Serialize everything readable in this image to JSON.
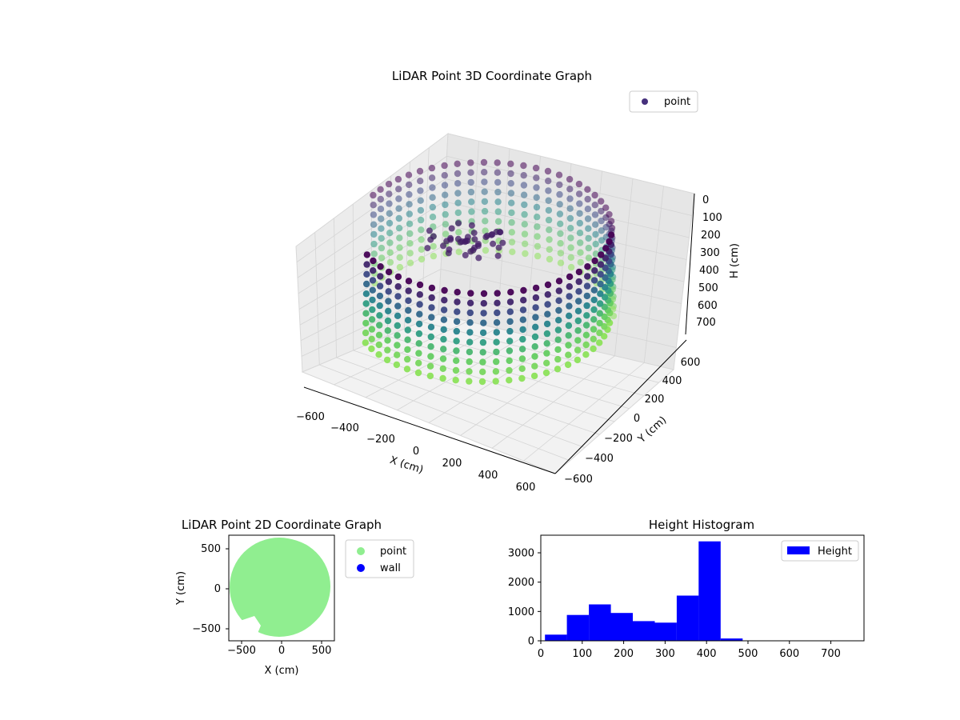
{
  "chart_data": [
    {
      "type": "scatter",
      "title": "LiDAR Point 3D Coordinate Graph",
      "xlabel": "X (cm)",
      "ylabel": "Y (cm)",
      "zlabel": "H (cm)",
      "xlim": [
        -700,
        700
      ],
      "ylim": [
        -700,
        700
      ],
      "zlim": [
        750,
        0
      ],
      "z_axis_inverted": true,
      "x_ticks": [
        "−600",
        "−400",
        "−200",
        "0",
        "200",
        "400",
        "600"
      ],
      "y_ticks": [
        "−600",
        "−400",
        "−200",
        "0",
        "200",
        "400",
        "600"
      ],
      "z_ticks": [
        "0",
        "100",
        "200",
        "300",
        "400",
        "500",
        "600",
        "700"
      ],
      "grid": true,
      "legend": {
        "position": "top-right",
        "entries": [
          {
            "label": "point",
            "color": "#46307c"
          }
        ]
      },
      "colormap": "viridis (by height)",
      "structure": "ring of points, radius about 600 cm, heights 0 to 750 cm, gap on the left"
    },
    {
      "type": "scatter",
      "title": "LiDAR Point 2D Coordinate Graph",
      "xlabel": "X (cm)",
      "ylabel": "Y (cm)",
      "xlim": [
        -700,
        700
      ],
      "ylim": [
        -700,
        700
      ],
      "x_ticks": [
        "−500",
        "0",
        "500"
      ],
      "y_ticks": [
        "−500",
        "0",
        "500"
      ],
      "legend": {
        "position": "outside-right",
        "entries": [
          {
            "label": "point",
            "color": "#90ee90"
          },
          {
            "label": "wall",
            "color": "#0000ff"
          }
        ]
      },
      "series": [
        {
          "name": "point",
          "color": "#90ee90"
        },
        {
          "name": "wall",
          "color": "#0000ff"
        }
      ]
    },
    {
      "type": "bar",
      "title": "Height Histogram",
      "xlim": [
        0,
        780
      ],
      "ylim": [
        0,
        3600
      ],
      "x_ticks": [
        "0",
        "100",
        "200",
        "300",
        "400",
        "500",
        "600",
        "700"
      ],
      "y_ticks": [
        "0",
        "1000",
        "2000",
        "3000"
      ],
      "bin_edges": [
        10,
        63,
        116,
        169,
        222,
        275,
        328,
        381,
        434,
        487,
        540,
        593,
        646,
        699,
        752
      ],
      "values": [
        210,
        880,
        1240,
        950,
        670,
        620,
        1540,
        3390,
        80,
        0,
        0,
        0,
        0,
        0
      ],
      "legend": {
        "position": "top-right",
        "entries": [
          {
            "label": "Height",
            "color": "#0000ff"
          }
        ]
      },
      "series": [
        {
          "name": "Height",
          "color": "#0000ff"
        }
      ]
    }
  ]
}
